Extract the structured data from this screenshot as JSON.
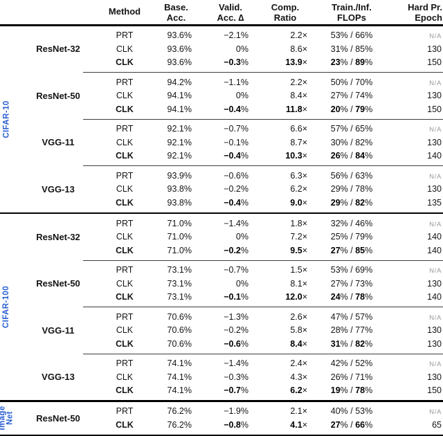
{
  "table": {
    "header": {
      "columns": [
        {
          "key": "model",
          "label1": "",
          "label2": ""
        },
        {
          "key": "method",
          "label1": "Method",
          "label2": ""
        },
        {
          "key": "base",
          "label1": "Base.",
          "label2": "Acc."
        },
        {
          "key": "valid",
          "label1": "Valid.",
          "label2": "Acc. ∆"
        },
        {
          "key": "comp",
          "label1": "Comp.",
          "label2": "Ratio"
        },
        {
          "key": "flops",
          "label1": "Train./Inf.",
          "label2": "FLOPs"
        },
        {
          "key": "epoch",
          "label1": "Hard Pr.",
          "label2": "Epoch"
        }
      ]
    },
    "accent_blue": "#2b5fd2",
    "na_text": "N/A",
    "sections": [
      {
        "dataset": "CIFAR-10",
        "label_lines": [
          "CIFAR-10"
        ],
        "groups": [
          {
            "model": "ResNet-32",
            "rows": [
              {
                "method": "PRT",
                "base": "93.6%",
                "valid": "−2.1%",
                "comp": "2.2×",
                "flops": "53% / 66%",
                "epoch": "N/A",
                "bold": false
              },
              {
                "method": "CLK",
                "base": "93.6%",
                "valid": "0%",
                "comp": "8.6×",
                "flops": "31% / 85%",
                "epoch": "130",
                "bold": false
              },
              {
                "method": "CLK",
                "base": "93.6%",
                "valid": "−0.3%",
                "comp": "13.9×",
                "flops": "23% / 89%",
                "epoch": "150",
                "bold": true
              }
            ]
          },
          {
            "model": "ResNet-50",
            "rows": [
              {
                "method": "PRT",
                "base": "94.2%",
                "valid": "−1.1%",
                "comp": "2.2×",
                "flops": "50% / 70%",
                "epoch": "N/A",
                "bold": false
              },
              {
                "method": "CLK",
                "base": "94.1%",
                "valid": "0%",
                "comp": "8.4×",
                "flops": "27% / 74%",
                "epoch": "130",
                "bold": false
              },
              {
                "method": "CLK",
                "base": "94.1%",
                "valid": "−0.4%",
                "comp": "11.8×",
                "flops": "20% / 79%",
                "epoch": "150",
                "bold": true
              }
            ]
          },
          {
            "model": "VGG-11",
            "rows": [
              {
                "method": "PRT",
                "base": "92.1%",
                "valid": "−0.7%",
                "comp": "6.6×",
                "flops": "57% / 65%",
                "epoch": "N/A",
                "bold": false
              },
              {
                "method": "CLK",
                "base": "92.1%",
                "valid": "−0.1%",
                "comp": "8.7×",
                "flops": "30% / 82%",
                "epoch": "130",
                "bold": false
              },
              {
                "method": "CLK",
                "base": "92.1%",
                "valid": "−0.4%",
                "comp": "10.3×",
                "flops": "26% / 84%",
                "epoch": "140",
                "bold": true
              }
            ]
          },
          {
            "model": "VGG-13",
            "rows": [
              {
                "method": "PRT",
                "base": "93.9%",
                "valid": "−0.6%",
                "comp": "6.3×",
                "flops": "56% / 63%",
                "epoch": "N/A",
                "bold": false
              },
              {
                "method": "CLK",
                "base": "93.8%",
                "valid": "−0.2%",
                "comp": "6.2×",
                "flops": "29% / 78%",
                "epoch": "130",
                "bold": false
              },
              {
                "method": "CLK",
                "base": "93.8%",
                "valid": "−0.4%",
                "comp": "9.0×",
                "flops": "29% / 82%",
                "epoch": "135",
                "bold": true
              }
            ]
          }
        ]
      },
      {
        "dataset": "CIFAR-100",
        "label_lines": [
          "CIFAR-100"
        ],
        "groups": [
          {
            "model": "ResNet-32",
            "rows": [
              {
                "method": "PRT",
                "base": "71.0%",
                "valid": "−1.4%",
                "comp": "1.8×",
                "flops": "32% / 46%",
                "epoch": "N/A",
                "bold": false
              },
              {
                "method": "CLK",
                "base": "71.0%",
                "valid": "0%",
                "comp": "7.2×",
                "flops": "25% / 79%",
                "epoch": "140",
                "bold": false
              },
              {
                "method": "CLK",
                "base": "71.0%",
                "valid": "−0.2%",
                "comp": "9.5×",
                "flops": "27% / 85%",
                "epoch": "140",
                "bold": true
              }
            ]
          },
          {
            "model": "ResNet-50",
            "rows": [
              {
                "method": "PRT",
                "base": "73.1%",
                "valid": "−0.7%",
                "comp": "1.5×",
                "flops": "53% / 69%",
                "epoch": "N/A",
                "bold": false
              },
              {
                "method": "CLK",
                "base": "73.1%",
                "valid": "0%",
                "comp": "8.1×",
                "flops": "27% / 73%",
                "epoch": "130",
                "bold": false
              },
              {
                "method": "CLK",
                "base": "73.1%",
                "valid": "−0.1%",
                "comp": "12.0×",
                "flops": "24% / 78%",
                "epoch": "140",
                "bold": true
              }
            ]
          },
          {
            "model": "VGG-11",
            "rows": [
              {
                "method": "PRT",
                "base": "70.6%",
                "valid": "−1.3%",
                "comp": "2.6×",
                "flops": "47% / 57%",
                "epoch": "N/A",
                "bold": false
              },
              {
                "method": "CLK",
                "base": "70.6%",
                "valid": "−0.2%",
                "comp": "5.8×",
                "flops": "28% / 77%",
                "epoch": "130",
                "bold": false
              },
              {
                "method": "CLK",
                "base": "70.6%",
                "valid": "−0.6%",
                "comp": "8.4×",
                "flops": "31% / 82%",
                "epoch": "130",
                "bold": true
              }
            ]
          },
          {
            "model": "VGG-13",
            "rows": [
              {
                "method": "PRT",
                "base": "74.1%",
                "valid": "−1.4%",
                "comp": "2.4×",
                "flops": "42% / 52%",
                "epoch": "N/A",
                "bold": false
              },
              {
                "method": "CLK",
                "base": "74.1%",
                "valid": "−0.3%",
                "comp": "4.3×",
                "flops": "26% / 71%",
                "epoch": "130",
                "bold": false
              },
              {
                "method": "CLK",
                "base": "74.1%",
                "valid": "−0.7%",
                "comp": "6.2×",
                "flops": "19% / 78%",
                "epoch": "150",
                "bold": true
              }
            ]
          }
        ]
      },
      {
        "dataset": "ImageNet",
        "label_lines": [
          "Image",
          "Net"
        ],
        "groups": [
          {
            "model": "ResNet-50",
            "rows": [
              {
                "method": "PRT",
                "base": "76.2%",
                "valid": "−1.9%",
                "comp": "2.1×",
                "flops": "40% / 53%",
                "epoch": "N/A",
                "bold": false
              },
              {
                "method": "CLK",
                "base": "76.2%",
                "valid": "−0.8%",
                "comp": "4.1×",
                "flops": "27% / 66%",
                "epoch": "65",
                "bold": true
              }
            ]
          }
        ]
      }
    ]
  }
}
